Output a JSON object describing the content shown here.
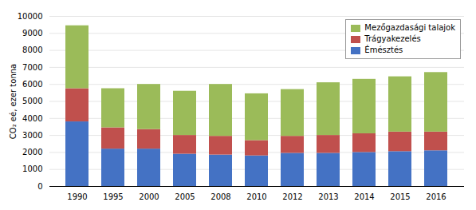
{
  "chart_data": {
    "type": "bar",
    "stacked": true,
    "categories": [
      "1990",
      "1995",
      "2000",
      "2005",
      "2008",
      "2010",
      "2012",
      "2013",
      "2014",
      "2015",
      "2016"
    ],
    "series": [
      {
        "name": "Émésztés",
        "color": "#4472c4",
        "values": [
          3800,
          2200,
          2200,
          1900,
          1850,
          1800,
          1950,
          1950,
          2000,
          2050,
          2100
        ]
      },
      {
        "name": "Trágyakezelés",
        "color": "#c0504d",
        "values": [
          1950,
          1250,
          1150,
          1100,
          1100,
          900,
          1000,
          1050,
          1100,
          1150,
          1100
        ]
      },
      {
        "name": "Mezőgazdasági talajok",
        "color": "#9bbb59",
        "values": [
          3700,
          2300,
          2650,
          2600,
          3050,
          2750,
          2750,
          3100,
          3200,
          3250,
          3500
        ]
      }
    ],
    "ylabel": "CO₂ eé, ezer tonna",
    "ylim": [
      0,
      10000
    ],
    "yticks": [
      0,
      1000,
      2000,
      3000,
      4000,
      5000,
      6000,
      7000,
      8000,
      9000,
      10000
    ],
    "grid": true,
    "legend": "upper right"
  }
}
